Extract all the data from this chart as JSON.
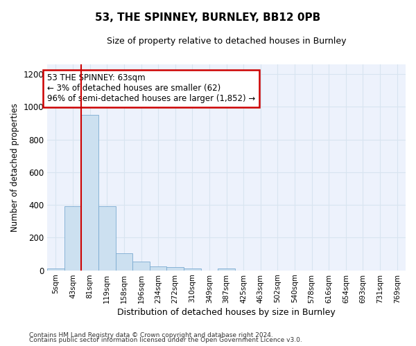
{
  "title1": "53, THE SPINNEY, BURNLEY, BB12 0PB",
  "title2": "Size of property relative to detached houses in Burnley",
  "xlabel": "Distribution of detached houses by size in Burnley",
  "ylabel": "Number of detached properties",
  "categories": [
    "5sqm",
    "43sqm",
    "81sqm",
    "119sqm",
    "158sqm",
    "196sqm",
    "234sqm",
    "272sqm",
    "310sqm",
    "349sqm",
    "387sqm",
    "425sqm",
    "463sqm",
    "502sqm",
    "540sqm",
    "578sqm",
    "616sqm",
    "654sqm",
    "693sqm",
    "731sqm",
    "769sqm"
  ],
  "values": [
    10,
    390,
    950,
    390,
    105,
    52,
    25,
    18,
    10,
    0,
    10,
    0,
    0,
    0,
    0,
    0,
    0,
    0,
    0,
    0,
    0
  ],
  "bar_color": "#cce0f0",
  "bar_edge_color": "#7aaad0",
  "grid_color": "#d8e4f0",
  "ylim": [
    0,
    1260
  ],
  "yticks": [
    0,
    200,
    400,
    600,
    800,
    1000,
    1200
  ],
  "annotation_text": "53 THE SPINNEY: 63sqm\n← 3% of detached houses are smaller (62)\n96% of semi-detached houses are larger (1,852) →",
  "annotation_box_color": "#ffffff",
  "annotation_border_color": "#cc0000",
  "red_line_color": "#cc0000",
  "footer1": "Contains HM Land Registry data © Crown copyright and database right 2024.",
  "footer2": "Contains public sector information licensed under the Open Government Licence v3.0.",
  "background_color": "#ffffff",
  "plot_bg_color": "#edf2fc"
}
